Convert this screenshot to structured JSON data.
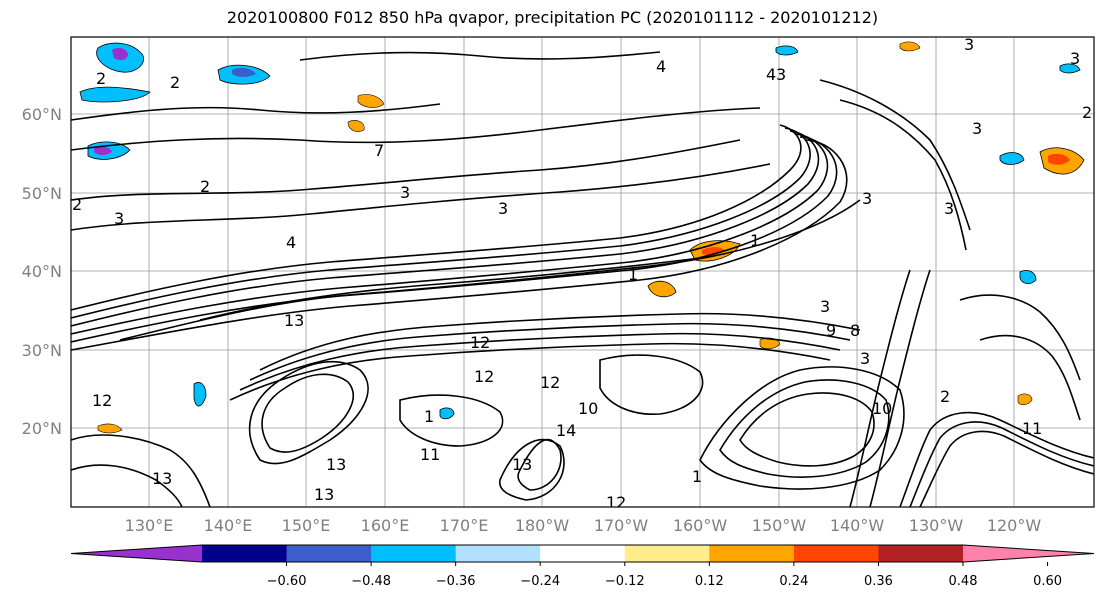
{
  "title": "2020100800 F012 850 hPa qvapor, precipitation PC (2020101112 - 2020101212)",
  "map": {
    "lat_labels": [
      "60°N",
      "50°N",
      "40°N",
      "30°N",
      "20°N"
    ],
    "lon_labels": [
      "130°E",
      "140°E",
      "150°E",
      "160°E",
      "170°E",
      "180°W",
      "170°W",
      "160°W",
      "150°W",
      "140°W",
      "130°W",
      "120°W"
    ],
    "contour_labels": [
      "2",
      "2",
      "2",
      "3",
      "3",
      "3",
      "3",
      "4",
      "7",
      "1",
      "1",
      "13",
      "13",
      "12",
      "12",
      "12",
      "12",
      "14",
      "1",
      "10",
      "11",
      "13",
      "13",
      "9",
      "8",
      "4",
      "4",
      "3",
      "3",
      "3",
      "3",
      "3",
      "1",
      "13",
      "12",
      "11",
      "10",
      "2",
      "2",
      "2",
      "3",
      "3"
    ]
  },
  "colorbar": {
    "tick_labels": [
      "−0.60",
      "−0.48",
      "−0.36",
      "−0.24",
      "−0.12",
      "0.12",
      "0.24",
      "0.36",
      "0.48",
      "0.60"
    ],
    "colors": [
      "#9932cc",
      "#00008b",
      "#3a5fcd",
      "#00bfff",
      "#b0e2ff",
      "#ffffff",
      "#ffec8b",
      "#ffa500",
      "#ff4500",
      "#b22222",
      "#ff82ab"
    ]
  }
}
